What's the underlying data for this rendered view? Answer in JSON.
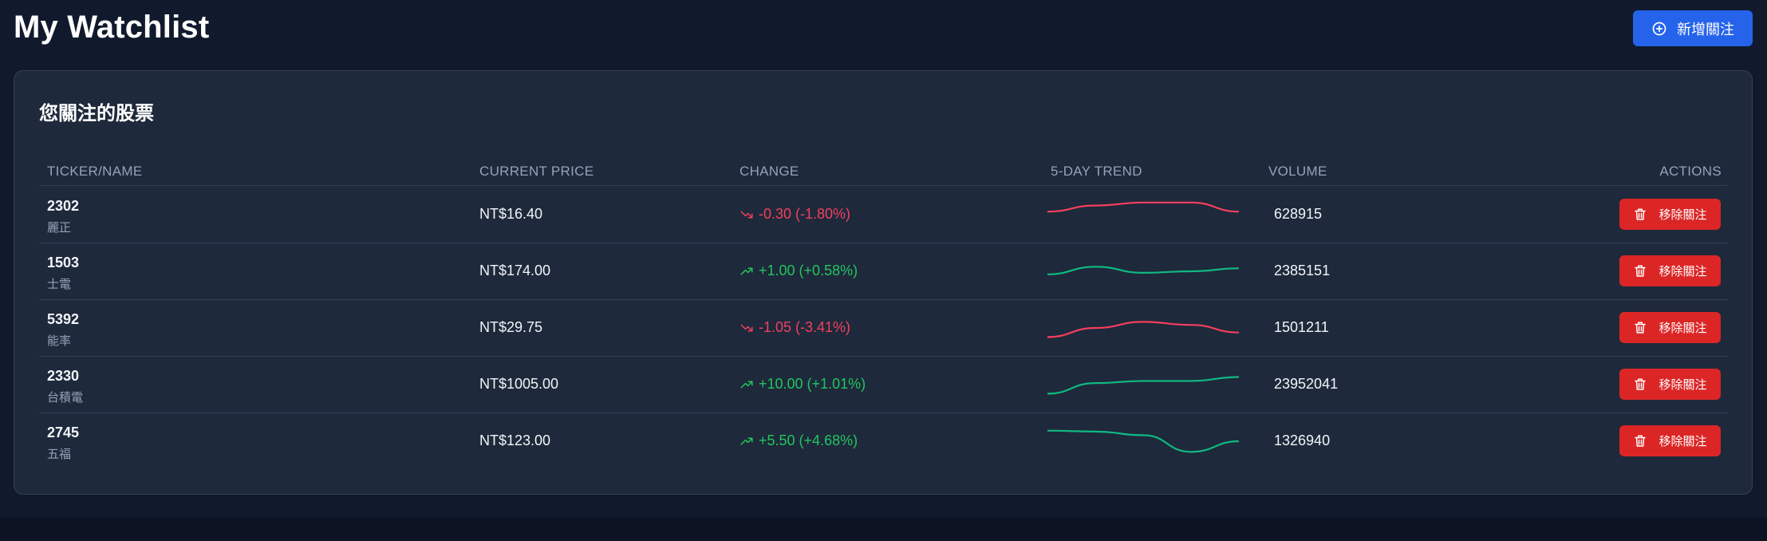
{
  "header": {
    "title": "My Watchlist",
    "add_button": {
      "label": "新增關注",
      "icon": "plus-circle-icon"
    }
  },
  "watchlist": {
    "title": "您關注的股票",
    "columns": {
      "ticker": "TICKER/NAME",
      "price": "CURRENT PRICE",
      "change": "CHANGE",
      "trend": "5-DAY TREND",
      "volume": "VOLUME",
      "actions": "ACTIONS"
    },
    "remove_label": "移除關注",
    "colors": {
      "up": "#22c55e",
      "down": "#f43f5e",
      "trend_up": "#10b981",
      "trend_down": "#f43f5e",
      "remove": "#dc2626",
      "add": "#2563eb"
    },
    "rows": [
      {
        "ticker": "2302",
        "name": "麗正",
        "price": "NT$16.40",
        "change": "-0.30 (-1.80%)",
        "direction": "down",
        "volume": "628915",
        "trend": [
          0.6,
          0.8,
          0.9,
          0.9,
          0.6
        ]
      },
      {
        "ticker": "1503",
        "name": "士電",
        "price": "NT$174.00",
        "change": "+1.00 (+0.58%)",
        "direction": "up",
        "volume": "2385151",
        "trend": [
          0.4,
          0.65,
          0.45,
          0.5,
          0.6
        ]
      },
      {
        "ticker": "5392",
        "name": "能率",
        "price": "NT$29.75",
        "change": "-1.05 (-3.41%)",
        "direction": "down",
        "volume": "1501211",
        "trend": [
          0.2,
          0.5,
          0.7,
          0.6,
          0.35
        ]
      },
      {
        "ticker": "2330",
        "name": "台積電",
        "price": "NT$1005.00",
        "change": "+10.00 (+1.01%)",
        "direction": "up",
        "volume": "23952041",
        "trend": [
          0.2,
          0.55,
          0.62,
          0.62,
          0.75
        ]
      },
      {
        "ticker": "2745",
        "name": "五福",
        "price": "NT$123.00",
        "change": "+5.50 (+4.68%)",
        "direction": "up",
        "volume": "1326940",
        "trend": [
          0.85,
          0.82,
          0.7,
          0.15,
          0.5
        ]
      }
    ]
  }
}
